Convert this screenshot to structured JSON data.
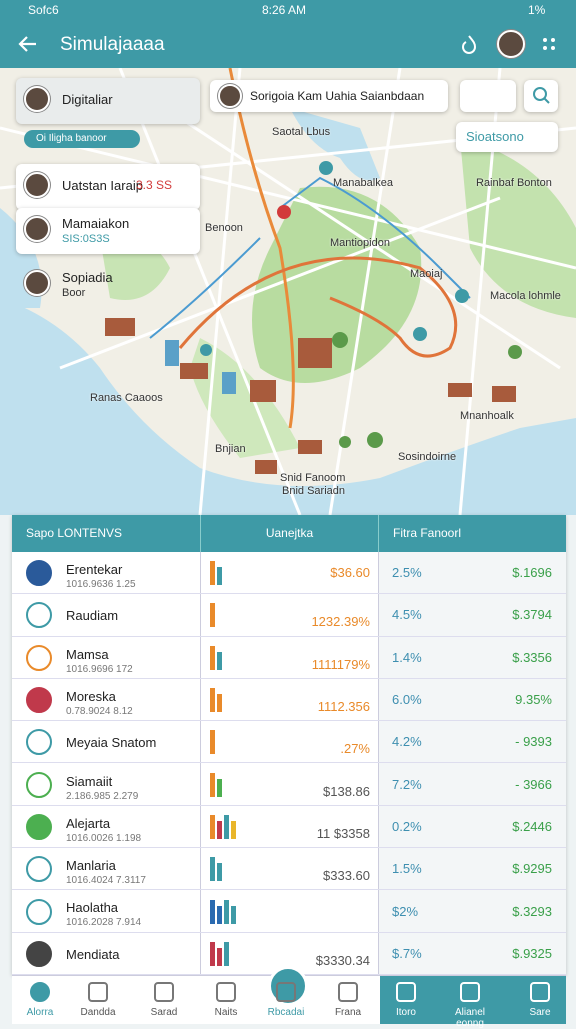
{
  "status_bar": {
    "carrier": "Sofc6",
    "time": "8:26 AM",
    "battery": "1%"
  },
  "header": {
    "title": "Simulajaaaa"
  },
  "map": {
    "search": "Sorigoia Kam   Uahia   Saianbdaan",
    "search_button": "Sioatsono",
    "pill": "Oi Iligha banoor",
    "contacts": [
      {
        "name": "Digitaliar"
      },
      {
        "name": "Uatstan Iaraip",
        "detail": "3.3 SS"
      },
      {
        "name": "Mamaiakon",
        "detail": "SIS:0S3S"
      },
      {
        "name": "Sopiadia",
        "detail": "Boor"
      }
    ],
    "labels": [
      "Saotal Lbus",
      "Manabalkea",
      "Rainbaf Bonton",
      "Benoon",
      "Mantiopidon",
      "Maoiaj",
      "Macola lohmle",
      "Ranas Caaoos",
      "Mnanhoalk",
      "Bnjian",
      "Sosindoirne",
      "Snid Fanoom",
      "Bnid Sariadn"
    ]
  },
  "table": {
    "headers": [
      "Sapo LONTENVS",
      "Uanejtka",
      "Fitra Fanoorl"
    ],
    "rows": [
      {
        "name": "Erentekar",
        "sub": "1016.9636 1.25",
        "mid": "$36.60",
        "pct": "2.5%",
        "amount": "$.1696"
      },
      {
        "name": "Raudiam",
        "mid": "1232.39%",
        "pct": "4.5%",
        "amount": "$.3794"
      },
      {
        "name": "Mamsa",
        "sub": "1016.9696 172",
        "mid": "1111179%",
        "pct": "1.4%",
        "amount": "$.3356"
      },
      {
        "name": "Moreska",
        "sub": "0.78.9024 8.12",
        "mid": "1112.356",
        "pct": "6.0%",
        "amount": "9.35%"
      },
      {
        "name": "Meyaia Snatom",
        "mid": ".27%",
        "pct": "4.2%",
        "amount": "- 9393"
      },
      {
        "name": "Siamaiit",
        "sub": "2.186.985 2.279",
        "mid": "$138.86",
        "pct": "7.2%",
        "amount": "- 3966"
      },
      {
        "name": "Alejarta",
        "sub": "1016.0026 1.198",
        "mid": "11 $3358",
        "pct": "0.2%",
        "amount": "$.2446"
      },
      {
        "name": "Manlaria",
        "sub": "1016.4024 7.3117",
        "mid": "$333.60",
        "pct": "1.5%",
        "amount": "$.9295"
      },
      {
        "name": "Haolatha",
        "sub": "1016.2028 7.914",
        "pct": "$2%",
        "amount": "$.3293"
      },
      {
        "name": "Mendiata",
        "mid": "$3330.34",
        "pct": "$.7%",
        "amount": "$.9325"
      }
    ]
  },
  "nav": [
    "Alorra",
    "Dandda",
    "Sarad",
    "Naits",
    "Rbcadai",
    "Frana",
    "Itoro",
    "Alianel eonng",
    "Sare"
  ]
}
